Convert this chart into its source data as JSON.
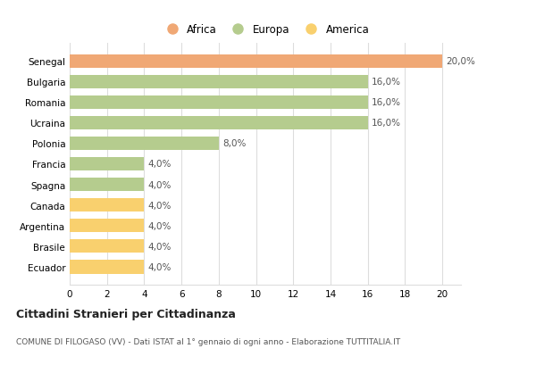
{
  "categories": [
    "Ecuador",
    "Brasile",
    "Argentina",
    "Canada",
    "Spagna",
    "Francia",
    "Polonia",
    "Ucraina",
    "Romania",
    "Bulgaria",
    "Senegal"
  ],
  "values": [
    4.0,
    4.0,
    4.0,
    4.0,
    4.0,
    4.0,
    8.0,
    16.0,
    16.0,
    16.0,
    20.0
  ],
  "colors": [
    "#f9d06e",
    "#f9d06e",
    "#f9d06e",
    "#f9d06e",
    "#b5cc8e",
    "#b5cc8e",
    "#b5cc8e",
    "#b5cc8e",
    "#b5cc8e",
    "#b5cc8e",
    "#f0a875"
  ],
  "labels": [
    "4,0%",
    "4,0%",
    "4,0%",
    "4,0%",
    "4,0%",
    "4,0%",
    "8,0%",
    "16,0%",
    "16,0%",
    "16,0%",
    "20,0%"
  ],
  "legend_labels": [
    "Africa",
    "Europa",
    "America"
  ],
  "legend_colors": [
    "#f0a875",
    "#b5cc8e",
    "#f9d06e"
  ],
  "title": "Cittadini Stranieri per Cittadinanza",
  "subtitle": "COMUNE DI FILOGASO (VV) - Dati ISTAT al 1° gennaio di ogni anno - Elaborazione TUTTITALIA.IT",
  "xlim": [
    0,
    21
  ],
  "xticks": [
    0,
    2,
    4,
    6,
    8,
    10,
    12,
    14,
    16,
    18,
    20
  ],
  "background_color": "#ffffff",
  "grid_color": "#dddddd"
}
